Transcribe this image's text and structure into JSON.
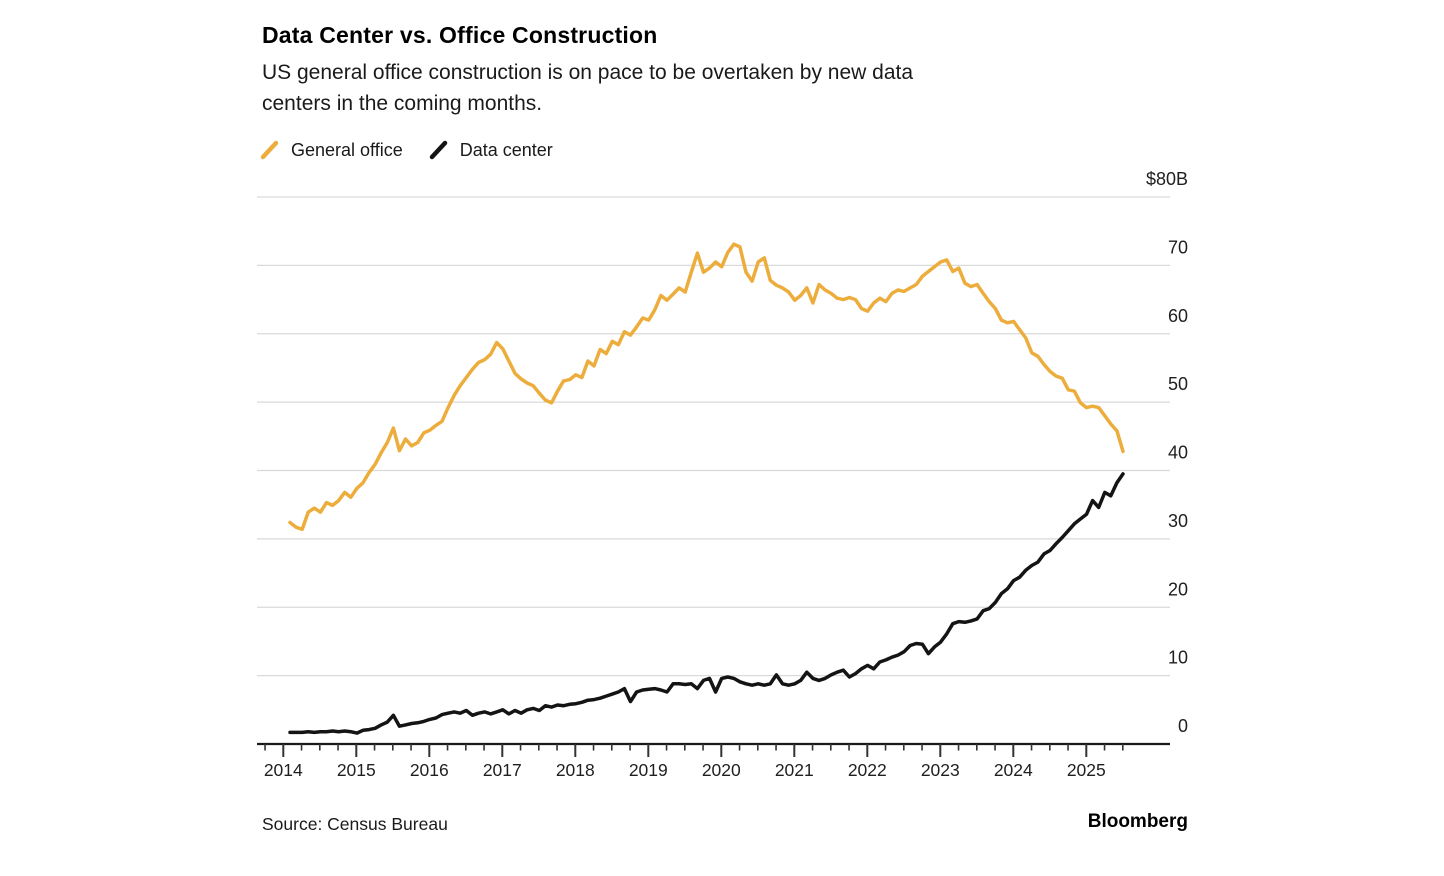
{
  "header": {
    "title": "Data Center vs. Office Construction",
    "subtitle": "US general office construction is on pace to be overtaken by new data\ncenters in the coming months."
  },
  "legend": [
    {
      "label": "General office",
      "color": "#EDAD3C"
    },
    {
      "label": "Data center",
      "color": "#141414"
    }
  ],
  "footer": {
    "source": "Source: Census Bureau",
    "brand": "Bloomberg"
  },
  "colors": {
    "general_office_line": "#EDAD3C",
    "data_center_line": "#141414",
    "gridline": "#dadada",
    "axis": "#1a1a1a",
    "tick": "#333333",
    "tick_label": "#1f1f1f"
  },
  "chart_data": {
    "type": "line",
    "title": "Data Center vs. Office Construction",
    "subtitle": "US general office construction is on pace to be overtaken by new data centers in the coming months.",
    "unit_label": "$80B",
    "frequency": "monthly",
    "x_start": "2014-01",
    "x_end": "2025-06",
    "x_tick_labels": [
      "2014",
      "2015",
      "2016",
      "2017",
      "2018",
      "2019",
      "2020",
      "2021",
      "2022",
      "2023",
      "2024",
      "2025"
    ],
    "y_tick_labels": [
      "$80B",
      "70",
      "60",
      "50",
      "40",
      "30",
      "20",
      "10",
      "0"
    ],
    "y_tick_values": [
      80,
      70,
      60,
      50,
      40,
      30,
      20,
      10,
      0
    ],
    "ylim": [
      0,
      80
    ],
    "grid": "horizontal",
    "legend_position": "top-left",
    "series": [
      {
        "name": "General office",
        "color": "#EDAD3C",
        "values": [
          32.4,
          31.7,
          31.4,
          33.9,
          34.5,
          33.9,
          35.3,
          34.9,
          35.6,
          36.8,
          36.1,
          37.4,
          38.2,
          39.7,
          40.9,
          42.6,
          44.1,
          46.2,
          42.9,
          44.6,
          43.6,
          44.1,
          45.5,
          45.9,
          46.6,
          47.2,
          49.2,
          51.0,
          52.4,
          53.6,
          54.8,
          55.8,
          56.2,
          57.0,
          58.7,
          57.8,
          56.0,
          54.2,
          53.4,
          52.8,
          52.4,
          51.3,
          50.3,
          49.9,
          51.6,
          53.1,
          53.3,
          54.0,
          53.6,
          56.0,
          55.3,
          57.7,
          57.1,
          58.9,
          58.4,
          60.3,
          59.8,
          61.0,
          62.3,
          62.0,
          63.5,
          65.6,
          64.9,
          65.8,
          66.7,
          66.1,
          69.0,
          71.8,
          69.0,
          69.6,
          70.5,
          69.8,
          71.9,
          73.1,
          72.7,
          69.0,
          67.7,
          70.5,
          71.1,
          67.8,
          67.1,
          66.7,
          66.1,
          64.9,
          65.6,
          66.7,
          64.5,
          67.2,
          66.4,
          65.9,
          65.2,
          65.0,
          65.3,
          65.0,
          63.7,
          63.3,
          64.5,
          65.2,
          64.7,
          65.9,
          66.4,
          66.2,
          66.7,
          67.2,
          68.4,
          69.1,
          69.8,
          70.5,
          70.8,
          69.1,
          69.6,
          67.4,
          66.9,
          67.2,
          65.9,
          64.7,
          63.7,
          62.0,
          61.6,
          61.8,
          60.6,
          59.4,
          57.2,
          56.7,
          55.5,
          54.5,
          53.8,
          53.5,
          51.8,
          51.6,
          49.9,
          49.2,
          49.4,
          49.2,
          48.0,
          46.8,
          45.8,
          42.8
        ]
      },
      {
        "name": "Data center",
        "color": "#141414",
        "values": [
          1.7,
          1.7,
          1.7,
          1.8,
          1.7,
          1.8,
          1.8,
          1.9,
          1.8,
          1.9,
          1.8,
          1.6,
          2.0,
          2.1,
          2.3,
          2.8,
          3.2,
          4.2,
          2.6,
          2.8,
          3.0,
          3.1,
          3.3,
          3.6,
          3.8,
          4.3,
          4.5,
          4.7,
          4.5,
          4.9,
          4.2,
          4.5,
          4.7,
          4.4,
          4.7,
          5.0,
          4.4,
          4.9,
          4.5,
          5.0,
          5.2,
          4.9,
          5.6,
          5.4,
          5.7,
          5.6,
          5.8,
          5.9,
          6.1,
          6.4,
          6.5,
          6.7,
          7.0,
          7.3,
          7.6,
          8.1,
          6.2,
          7.6,
          7.9,
          8.0,
          8.1,
          7.9,
          7.6,
          8.8,
          8.8,
          8.7,
          8.8,
          8.1,
          9.3,
          9.6,
          7.6,
          9.6,
          9.8,
          9.6,
          9.1,
          8.8,
          8.6,
          8.8,
          8.6,
          8.8,
          10.1,
          8.8,
          8.6,
          8.8,
          9.3,
          10.5,
          9.6,
          9.3,
          9.6,
          10.1,
          10.5,
          10.8,
          9.8,
          10.3,
          11.0,
          11.5,
          11.0,
          12.0,
          12.3,
          12.7,
          13.0,
          13.5,
          14.4,
          14.7,
          14.6,
          13.2,
          14.2,
          14.9,
          16.1,
          17.6,
          17.9,
          17.8,
          18.0,
          18.3,
          19.5,
          19.8,
          20.7,
          22.0,
          22.7,
          23.9,
          24.4,
          25.4,
          26.1,
          26.6,
          27.8,
          28.3,
          29.3,
          30.2,
          31.2,
          32.2,
          32.9,
          33.6,
          35.6,
          34.6,
          36.8,
          36.3,
          38.2,
          39.5
        ]
      }
    ]
  }
}
